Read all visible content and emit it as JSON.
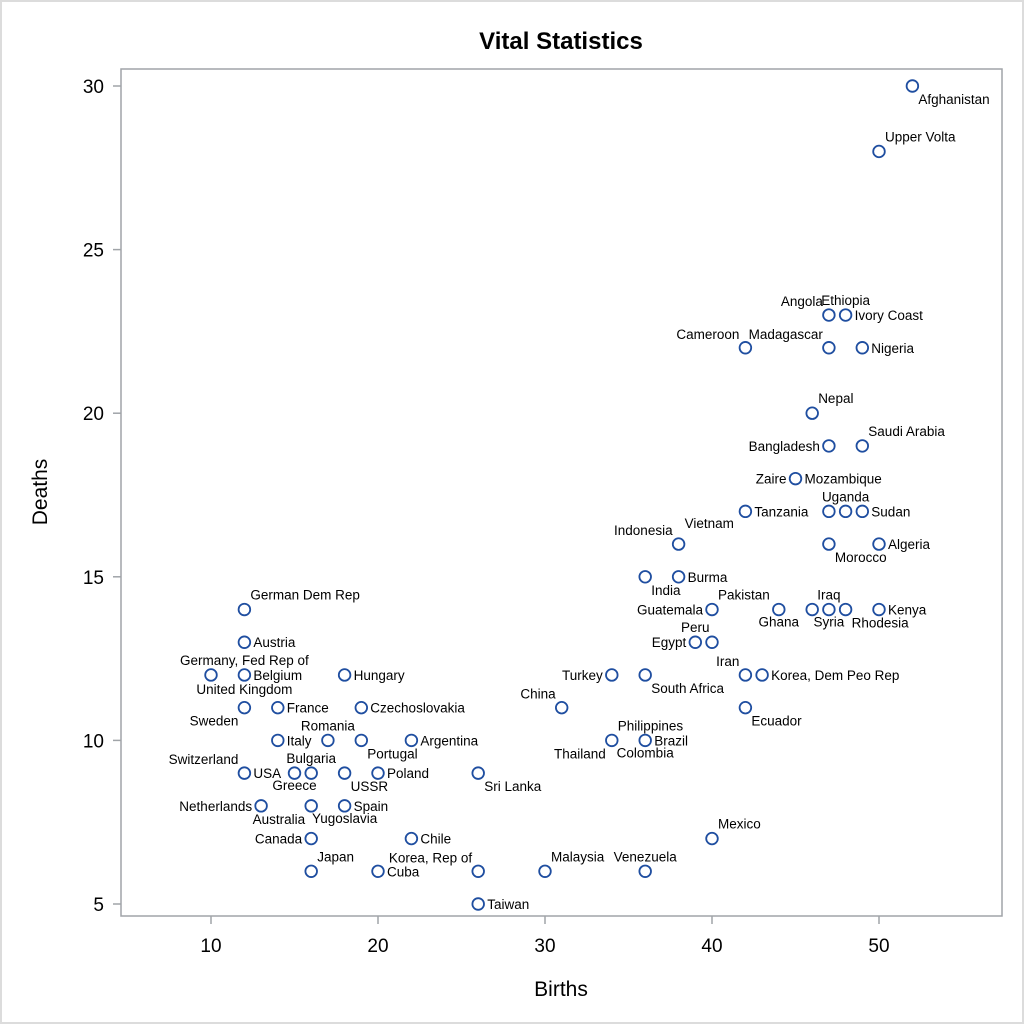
{
  "chart_data": {
    "type": "scatter",
    "title": "Vital Statistics",
    "xlabel": "Births",
    "ylabel": "Deaths",
    "xlim": [
      4.6,
      57.4
    ],
    "ylim": [
      4.64,
      30.5
    ],
    "xticks": [
      10,
      20,
      30,
      40,
      50
    ],
    "yticks": [
      5,
      10,
      15,
      20,
      25,
      30
    ],
    "grid": false,
    "legend": null,
    "marker_color": "#1f4ea0",
    "frame_color": "#a0a4a8",
    "points": [
      {
        "label": "Afghanistan",
        "x": 52,
        "y": 30,
        "pos": "br"
      },
      {
        "label": "Upper Volta",
        "x": 50,
        "y": 28,
        "pos": "tr"
      },
      {
        "label": "Angola",
        "x": 47,
        "y": 23,
        "pos": "tl"
      },
      {
        "label": "Ethiopia",
        "x": 48,
        "y": 23,
        "pos": "t"
      },
      {
        "label": "Ivory Coast",
        "x": 48,
        "y": 23,
        "pos": "r",
        "nomarker": true
      },
      {
        "label": "Cameroon",
        "x": 42,
        "y": 22,
        "pos": "tl"
      },
      {
        "label": "Madagascar",
        "x": 47,
        "y": 22,
        "pos": "tl"
      },
      {
        "label": "Nigeria",
        "x": 49,
        "y": 22,
        "pos": "r"
      },
      {
        "label": "Nepal",
        "x": 46,
        "y": 20,
        "pos": "tr"
      },
      {
        "label": "Bangladesh",
        "x": 47,
        "y": 19,
        "pos": "l"
      },
      {
        "label": "Saudi Arabia",
        "x": 49,
        "y": 19,
        "pos": "tr"
      },
      {
        "label": "Zaire",
        "x": 45,
        "y": 18,
        "pos": "l"
      },
      {
        "label": "Mozambique",
        "x": 45,
        "y": 18,
        "pos": "r",
        "nomarker": true
      },
      {
        "label": "Tanzania",
        "x": 42,
        "y": 17,
        "pos": "r"
      },
      {
        "label": "",
        "x": 47,
        "y": 17,
        "pos": "r"
      },
      {
        "label": "Uganda",
        "x": 48,
        "y": 17,
        "pos": "t"
      },
      {
        "label": "Sudan",
        "x": 49,
        "y": 17,
        "pos": "r"
      },
      {
        "label": "Indonesia",
        "x": 38,
        "y": 16,
        "pos": "tl"
      },
      {
        "label": "Vietnam",
        "x": 38,
        "y": 16,
        "pos": "tr2",
        "nomarker": true
      },
      {
        "label": "Morocco",
        "x": 47,
        "y": 16,
        "pos": "br"
      },
      {
        "label": "Algeria",
        "x": 50,
        "y": 16,
        "pos": "r"
      },
      {
        "label": "India",
        "x": 36,
        "y": 15,
        "pos": "br"
      },
      {
        "label": "Burma",
        "x": 38,
        "y": 15,
        "pos": "r"
      },
      {
        "label": "Guatemala",
        "x": 40,
        "y": 14,
        "pos": "l"
      },
      {
        "label": "Pakistan",
        "x": 40,
        "y": 14,
        "pos": "tr",
        "nomarker": true
      },
      {
        "label": "Ghana",
        "x": 44,
        "y": 14,
        "pos": "b"
      },
      {
        "label": "Iraq",
        "x": 47,
        "y": 14,
        "pos": "t"
      },
      {
        "label": "",
        "x": 46,
        "y": 14,
        "pos": "r"
      },
      {
        "label": "Syria",
        "x": 47,
        "y": 14,
        "pos": "b",
        "nomarker": true
      },
      {
        "label": "Rhodesia",
        "x": 48,
        "y": 14,
        "pos": "br"
      },
      {
        "label": "Kenya",
        "x": 50,
        "y": 14,
        "pos": "r"
      },
      {
        "label": "Egypt",
        "x": 39,
        "y": 13,
        "pos": "l"
      },
      {
        "label": "Peru",
        "x": 39,
        "y": 13,
        "pos": "t",
        "nomarker": true
      },
      {
        "label": "",
        "x": 40,
        "y": 13,
        "pos": "r"
      },
      {
        "label": "Turkey",
        "x": 34,
        "y": 12,
        "pos": "l"
      },
      {
        "label": "South Africa",
        "x": 36,
        "y": 12,
        "pos": "br"
      },
      {
        "label": "Iran",
        "x": 42,
        "y": 12,
        "pos": "tl"
      },
      {
        "label": "Korea, Dem Peo Rep",
        "x": 43,
        "y": 12,
        "pos": "r"
      },
      {
        "label": "China",
        "x": 31,
        "y": 11,
        "pos": "tl"
      },
      {
        "label": "Ecuador",
        "x": 42,
        "y": 11,
        "pos": "br"
      },
      {
        "label": "Philippines",
        "x": 34,
        "y": 10,
        "pos": "tr"
      },
      {
        "label": "Thailand",
        "x": 34,
        "y": 10,
        "pos": "bl",
        "nomarker": true
      },
      {
        "label": "Brazil",
        "x": 36,
        "y": 10,
        "pos": "r"
      },
      {
        "label": "Colombia",
        "x": 36,
        "y": 10,
        "pos": "b",
        "nomarker": true
      },
      {
        "label": "Sri Lanka",
        "x": 26,
        "y": 9,
        "pos": "br"
      },
      {
        "label": "Mexico",
        "x": 40,
        "y": 7,
        "pos": "tr"
      },
      {
        "label": "Korea, Rep of",
        "x": 26,
        "y": 6,
        "pos": "tl"
      },
      {
        "label": "Malaysia",
        "x": 30,
        "y": 6,
        "pos": "tr"
      },
      {
        "label": "Venezuela",
        "x": 36,
        "y": 6,
        "pos": "t"
      },
      {
        "label": "Taiwan",
        "x": 26,
        "y": 5,
        "pos": "r"
      },
      {
        "label": "German Dem Rep",
        "x": 12,
        "y": 14,
        "pos": "tr"
      },
      {
        "label": "Austria",
        "x": 12,
        "y": 13,
        "pos": "r"
      },
      {
        "label": "",
        "x": 10,
        "y": 12,
        "pos": "r"
      },
      {
        "label": "Germany, Fed Rep of",
        "x": 12,
        "y": 12,
        "pos": "t"
      },
      {
        "label": "Belgium",
        "x": 12,
        "y": 12,
        "pos": "r",
        "nomarker": true
      },
      {
        "label": "United Kingdom",
        "x": 12,
        "y": 12,
        "pos": "b2",
        "nomarker": true
      },
      {
        "label": "Hungary",
        "x": 18,
        "y": 12,
        "pos": "r"
      },
      {
        "label": "Sweden",
        "x": 12,
        "y": 11,
        "pos": "bl"
      },
      {
        "label": "France",
        "x": 14,
        "y": 11,
        "pos": "r"
      },
      {
        "label": "Czechoslovakia",
        "x": 19,
        "y": 11,
        "pos": "r"
      },
      {
        "label": "Italy",
        "x": 14,
        "y": 10,
        "pos": "r"
      },
      {
        "label": "Romania",
        "x": 17,
        "y": 10,
        "pos": "t"
      },
      {
        "label": "Portugal",
        "x": 19,
        "y": 10,
        "pos": "br"
      },
      {
        "label": "Argentina",
        "x": 22,
        "y": 10,
        "pos": "r"
      },
      {
        "label": "Switzerland",
        "x": 12,
        "y": 9,
        "pos": "tl"
      },
      {
        "label": "USA",
        "x": 12,
        "y": 9,
        "pos": "r",
        "nomarker": true
      },
      {
        "label": "Bulgaria",
        "x": 16,
        "y": 9,
        "pos": "t"
      },
      {
        "label": "Greece",
        "x": 15,
        "y": 9,
        "pos": "b"
      },
      {
        "label": "USSR",
        "x": 18,
        "y": 9,
        "pos": "br"
      },
      {
        "label": "Poland",
        "x": 20,
        "y": 9,
        "pos": "r"
      },
      {
        "label": "Netherlands",
        "x": 13,
        "y": 8,
        "pos": "l"
      },
      {
        "label": "Australia",
        "x": 16,
        "y": 8,
        "pos": "bl"
      },
      {
        "label": "Spain",
        "x": 18,
        "y": 8,
        "pos": "r"
      },
      {
        "label": "Yugoslavia",
        "x": 18,
        "y": 8,
        "pos": "b",
        "nomarker": true
      },
      {
        "label": "Canada",
        "x": 16,
        "y": 7,
        "pos": "l"
      },
      {
        "label": "Chile",
        "x": 22,
        "y": 7,
        "pos": "r"
      },
      {
        "label": "Japan",
        "x": 16,
        "y": 6,
        "pos": "tr"
      },
      {
        "label": "Cuba",
        "x": 20,
        "y": 6,
        "pos": "r"
      }
    ]
  }
}
